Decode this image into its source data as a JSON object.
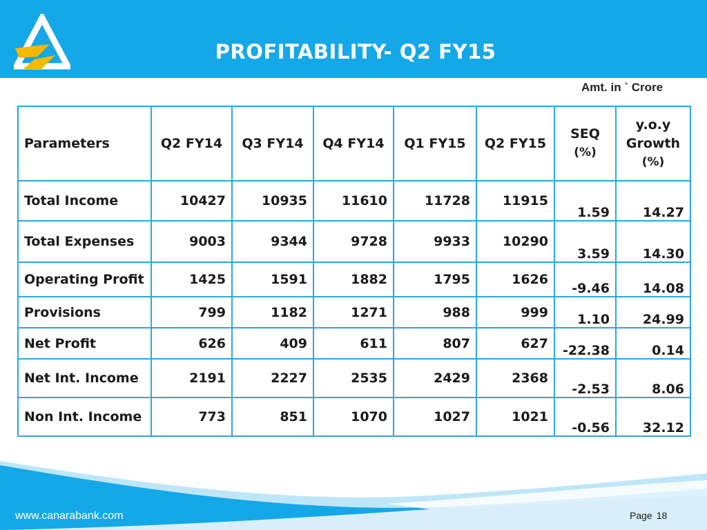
{
  "header": {
    "title": "PROFITABILITY- Q2 FY15"
  },
  "note": "Amt. in ` Crore",
  "table": {
    "headers": {
      "parameters": "Parameters",
      "q2fy14": "Q2 FY14",
      "q3fy14": "Q3 FY14",
      "q4fy14": "Q4 FY14",
      "q1fy15": "Q1 FY15",
      "q2fy15": "Q2 FY15",
      "seq_line1": "SEQ",
      "seq_line2": "(%)",
      "yoy_line1": "y.o.y",
      "yoy_line2": "Growth",
      "yoy_line3": "(%)"
    },
    "rows": [
      {
        "label": "Total  Income",
        "q2fy14": "10427",
        "q3fy14": "10935",
        "q4fy14": "11610",
        "q1fy15": "11728",
        "q2fy15": "11915",
        "seq": "1.59",
        "yoy": "14.27"
      },
      {
        "label": "Total  Expenses",
        "q2fy14": "9003",
        "q3fy14": "9344",
        "q4fy14": "9728",
        "q1fy15": "9933",
        "q2fy15": "10290",
        "seq": "3.59",
        "yoy": "14.30"
      },
      {
        "label": "Operating Profit",
        "q2fy14": "1425",
        "q3fy14": "1591",
        "q4fy14": "1882",
        "q1fy15": "1795",
        "q2fy15": "1626",
        "seq": "-9.46",
        "yoy": "14.08"
      },
      {
        "label": "Provisions",
        "q2fy14": "799",
        "q3fy14": "1182",
        "q4fy14": "1271",
        "q1fy15": "988",
        "q2fy15": "999",
        "seq": "1.10",
        "yoy": "24.99"
      },
      {
        "label": "Net Profit",
        "q2fy14": "626",
        "q3fy14": "409",
        "q4fy14": "611",
        "q1fy15": "807",
        "q2fy15": "627",
        "seq": "-22.38",
        "yoy": "0.14"
      },
      {
        "label": "Net Int. Income",
        "q2fy14": "2191",
        "q3fy14": "2227",
        "q4fy14": "2535",
        "q1fy15": "2429",
        "q2fy15": "2368",
        "seq": "-2.53",
        "yoy": "8.06"
      },
      {
        "label": "Non Int. Income",
        "q2fy14": "773",
        "q3fy14": "851",
        "q4fy14": "1070",
        "q1fy15": "1027",
        "q2fy15": "1021",
        "seq": "-0.56",
        "yoy": "32.12"
      }
    ]
  },
  "footer": {
    "url": "www.canarabank.com",
    "page_label": "Page",
    "page_number": "18"
  },
  "colors": {
    "brand_blue": "#14a8e8",
    "logo_yellow": "#f5b800",
    "table_border": "#2aa6e6"
  }
}
